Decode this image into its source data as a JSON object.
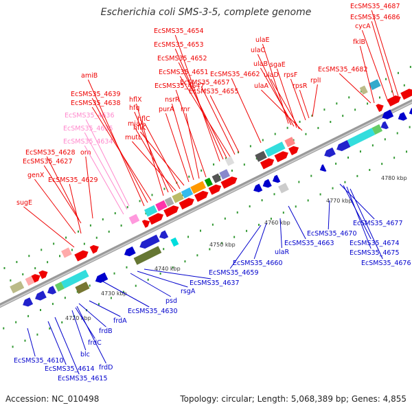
{
  "title": "Escherichia coli SMS-3-5, complete genome",
  "footer": {
    "accession": "Accession: NC_010498",
    "topology": "Topology: circular; Length: 5,068,389 bp; Genes: 4,855"
  },
  "colors": {
    "forward_label": "#ee0000",
    "reverse_label": "#0000cc",
    "rna_label": "#ff88cc",
    "backbone": "#999999"
  },
  "scale_ticks": [
    "4720 kbp",
    "4730 kbp",
    "4740 kbp",
    "4750 kbp",
    "4760 kbp",
    "4770 kbp",
    "4780 kbp"
  ],
  "forward_labels": [
    "sugE",
    "genX",
    "EcSMS35_4628",
    "EcSMS35_4627",
    "orn",
    "EcSMS35_4629",
    "EcSMS35_4634",
    "EcSMS35_4635",
    "EcSMS35_4636",
    "amiB",
    "EcSMS35_4639",
    "EcSMS35_4638",
    "hflX",
    "hfq",
    "miaA",
    "mutL",
    "hflC",
    "hflK",
    "purA",
    "nsrR",
    "rnr",
    "EcSMS35_4647",
    "EcSMS35_4654",
    "EcSMS35_4653",
    "EcSMS35_4652",
    "EcSMS35_4651",
    "EcSMS35_4657",
    "EcSMS35_4655",
    "EcSMS35_4662",
    "ulaE",
    "ulaC",
    "ulaB",
    "sgaE",
    "ulaD",
    "ulaA",
    "rpsF",
    "rpsR",
    "rplI",
    "EcSMS35_4682",
    "EcSMS35_4687",
    "EcSMS35_4686",
    "cycA",
    "fklB"
  ],
  "reverse_labels": [
    "EcSMS35_4610",
    "EcSMS35_4614",
    "EcSMS35_4615",
    "blc",
    "frdC",
    "frdB",
    "frdD",
    "frdA",
    "EcSMS35_4630",
    "psd",
    "rsgA",
    "EcSMS35_4637",
    "EcSMS35_4659",
    "EcSMS35_4660",
    "ulaR",
    "EcSMS35_4663",
    "EcSMS35_4670",
    "EcSMS35_4674",
    "EcSMS35_4675",
    "EcSMS35_4676",
    "EcSMS35_4677"
  ]
}
